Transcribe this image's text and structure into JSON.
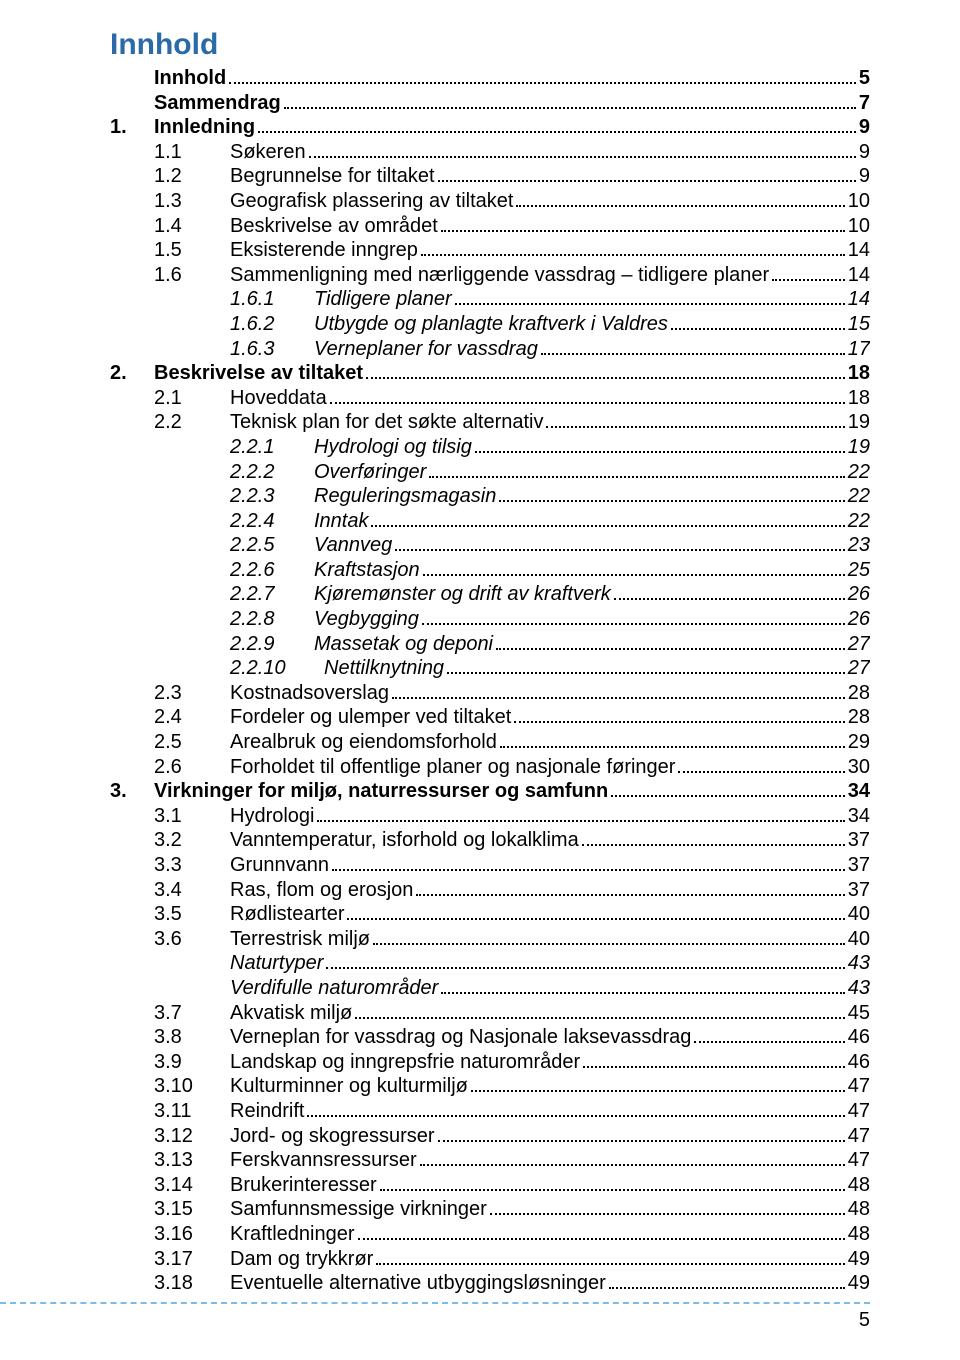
{
  "heading": "Innhold",
  "pageNumber": "5",
  "colors": {
    "heading": "#2a6aa6",
    "footerDash": "#7fb9e6",
    "text": "#000000",
    "background": "#ffffff"
  },
  "entries": [
    {
      "level": "lvl0sp",
      "num": "",
      "text": "Innhold",
      "page": "5"
    },
    {
      "level": "lvl0sp",
      "num": "",
      "text": "Sammendrag",
      "page": "7"
    },
    {
      "level": "lvl0",
      "num": "1.",
      "text": "Innledning",
      "page": "9"
    },
    {
      "level": "lvl1",
      "num": "1.1",
      "text": "Søkeren",
      "page": "9"
    },
    {
      "level": "lvl1",
      "num": "1.2",
      "text": "Begrunnelse for tiltaket",
      "page": "9"
    },
    {
      "level": "lvl1",
      "num": "1.3",
      "text": "Geografisk plassering av tiltaket",
      "page": "10"
    },
    {
      "level": "lvl1",
      "num": "1.4",
      "text": "Beskrivelse av området",
      "page": "10"
    },
    {
      "level": "lvl1",
      "num": "1.5",
      "text": "Eksisterende inngrep",
      "page": "14"
    },
    {
      "level": "lvl1",
      "num": "1.6",
      "text": "Sammenligning med nærliggende vassdrag – tidligere planer",
      "page": "14"
    },
    {
      "level": "lvl2",
      "num": "1.6.1",
      "text": "Tidligere planer",
      "page": "14"
    },
    {
      "level": "lvl2",
      "num": "1.6.2",
      "text": "Utbygde og planlagte kraftverk i Valdres",
      "page": "15"
    },
    {
      "level": "lvl2",
      "num": "1.6.3",
      "text": "Verneplaner for vassdrag",
      "page": "17"
    },
    {
      "level": "lvl0",
      "num": "2.",
      "text": "Beskrivelse av tiltaket",
      "page": "18"
    },
    {
      "level": "lvl1",
      "num": "2.1",
      "text": "Hoveddata",
      "page": "18"
    },
    {
      "level": "lvl1",
      "num": "2.2",
      "text": "Teknisk plan for det søkte alternativ",
      "page": "19"
    },
    {
      "level": "lvl2",
      "num": "2.2.1",
      "text": "Hydrologi og tilsig",
      "page": "19"
    },
    {
      "level": "lvl2",
      "num": "2.2.2",
      "text": "Overføringer",
      "page": "22"
    },
    {
      "level": "lvl2",
      "num": "2.2.3",
      "text": "Reguleringsmagasin",
      "page": "22"
    },
    {
      "level": "lvl2",
      "num": "2.2.4",
      "text": "Inntak",
      "page": "22"
    },
    {
      "level": "lvl2",
      "num": "2.2.5",
      "text": "Vannveg",
      "page": "23"
    },
    {
      "level": "lvl2",
      "num": "2.2.6",
      "text": "Kraftstasjon",
      "page": "25"
    },
    {
      "level": "lvl2",
      "num": "2.2.7",
      "text": "Kjøremønster og drift av kraftverk",
      "page": "26"
    },
    {
      "level": "lvl2",
      "num": "2.2.8",
      "text": "Vegbygging",
      "page": "26"
    },
    {
      "level": "lvl2",
      "num": "2.2.9",
      "text": "Massetak og deponi",
      "page": "27"
    },
    {
      "level": "lvl2",
      "num": "2.2.10",
      "text": "Nettilknytning",
      "page": "27"
    },
    {
      "level": "lvl1",
      "num": "2.3",
      "text": "Kostnadsoverslag",
      "page": "28"
    },
    {
      "level": "lvl1",
      "num": "2.4",
      "text": "Fordeler og ulemper ved tiltaket",
      "page": "28"
    },
    {
      "level": "lvl1",
      "num": "2.5",
      "text": "Arealbruk og eiendomsforhold",
      "page": "29"
    },
    {
      "level": "lvl1",
      "num": "2.6",
      "text": "Forholdet til offentlige planer og nasjonale føringer",
      "page": "30"
    },
    {
      "level": "lvl0",
      "num": "3.",
      "text": "Virkninger for miljø, naturressurser og samfunn",
      "page": "34"
    },
    {
      "level": "lvl1",
      "num": "3.1",
      "text": "Hydrologi",
      "page": "34"
    },
    {
      "level": "lvl1",
      "num": "3.2",
      "text": "Vanntemperatur, isforhold og lokalklima",
      "page": "37"
    },
    {
      "level": "lvl1",
      "num": "3.3",
      "text": "Grunnvann",
      "page": "37"
    },
    {
      "level": "lvl1",
      "num": "3.4",
      "text": "Ras, flom og erosjon",
      "page": "37"
    },
    {
      "level": "lvl1",
      "num": "3.5",
      "text": "Rødlistearter",
      "page": "40"
    },
    {
      "level": "lvl1",
      "num": "3.6",
      "text": "Terrestrisk miljø",
      "page": "40"
    },
    {
      "level": "lvl2x",
      "num": "",
      "text": "Naturtyper",
      "page": "43"
    },
    {
      "level": "lvl2x",
      "num": "",
      "text": "Verdifulle naturområder",
      "page": "43"
    },
    {
      "level": "lvl1",
      "num": "3.7",
      "text": "Akvatisk miljø",
      "page": "45"
    },
    {
      "level": "lvl1",
      "num": "3.8",
      "text": "Verneplan for vassdrag og Nasjonale laksevassdrag",
      "page": "46"
    },
    {
      "level": "lvl1",
      "num": "3.9",
      "text": "Landskap og inngrepsfrie naturområder",
      "page": "46"
    },
    {
      "level": "lvl1",
      "num": "3.10",
      "text": "Kulturminner og kulturmiljø",
      "page": "47"
    },
    {
      "level": "lvl1",
      "num": "3.11",
      "text": "Reindrift",
      "page": "47"
    },
    {
      "level": "lvl1",
      "num": "3.12",
      "text": "Jord- og skogressurser",
      "page": "47"
    },
    {
      "level": "lvl1",
      "num": "3.13",
      "text": "Ferskvannsressurser",
      "page": "47"
    },
    {
      "level": "lvl1",
      "num": "3.14",
      "text": "Brukerinteresser",
      "page": "48"
    },
    {
      "level": "lvl1",
      "num": "3.15",
      "text": "Samfunnsmessige virkninger",
      "page": "48"
    },
    {
      "level": "lvl1",
      "num": "3.16",
      "text": "Kraftledninger",
      "page": "48"
    },
    {
      "level": "lvl1",
      "num": "3.17",
      "text": "Dam og trykkrør",
      "page": "49"
    },
    {
      "level": "lvl1",
      "num": "3.18",
      "text": "Eventuelle alternative utbyggingsløsninger",
      "page": "49"
    }
  ]
}
